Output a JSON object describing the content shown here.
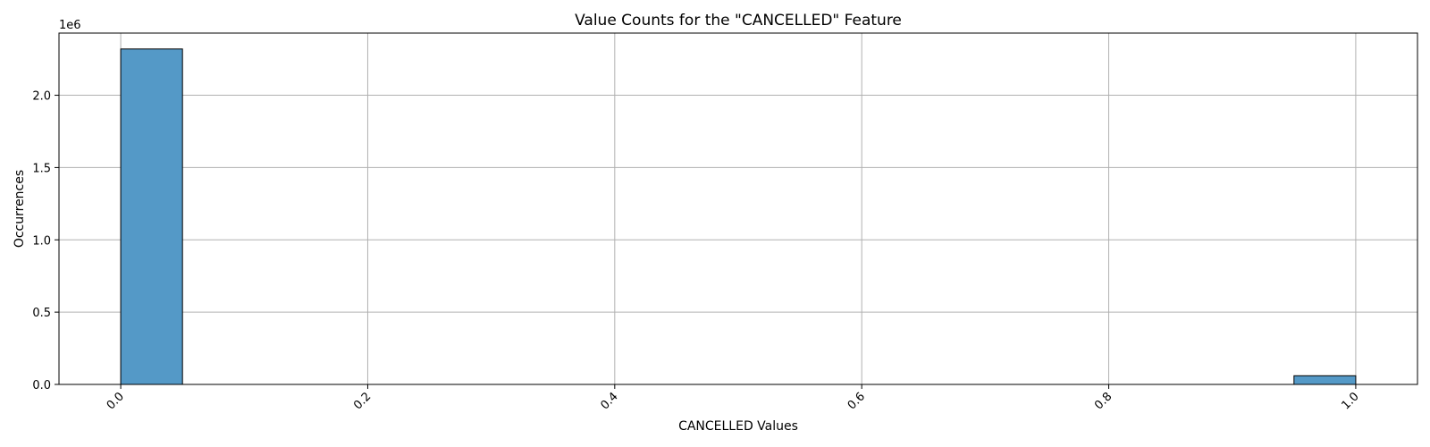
{
  "chart_data": {
    "type": "bar",
    "title": "Value Counts for the \"CANCELLED\" Feature",
    "xlabel": "CANCELLED Values",
    "ylabel": "Occurrences",
    "y_offset_label": "1e6",
    "xlim": [
      -0.05,
      1.05
    ],
    "ylim": [
      0,
      2430000
    ],
    "x_ticks": [
      0.0,
      0.2,
      0.4,
      0.6,
      0.8,
      1.0
    ],
    "x_tick_labels": [
      "0.0",
      "0.2",
      "0.4",
      "0.6",
      "0.8",
      "1.0"
    ],
    "x_tick_rotation": 45,
    "y_ticks": [
      0,
      500000,
      1000000,
      1500000,
      2000000
    ],
    "y_tick_labels": [
      "0.0",
      "0.5",
      "1.0",
      "1.5",
      "2.0"
    ],
    "grid": true,
    "bin_count": 20,
    "bars": [
      {
        "x_start": 0.0,
        "x_end": 0.05,
        "value": 2320000
      },
      {
        "x_start": 0.95,
        "x_end": 1.0,
        "value": 60000
      }
    ],
    "colors": {
      "bar_fill": "#5499c7",
      "bar_edge": "#000000",
      "grid": "#b0b0b0"
    }
  }
}
